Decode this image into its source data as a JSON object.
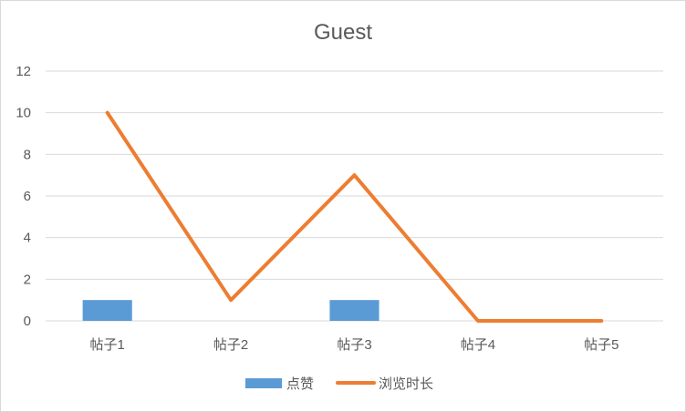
{
  "chart_data": {
    "type": "bar",
    "title": "Guest",
    "categories": [
      "帖子1",
      "帖子2",
      "帖子3",
      "帖子4",
      "帖子5"
    ],
    "ylim": [
      0,
      12
    ],
    "yticks": [
      0,
      2,
      4,
      6,
      8,
      10,
      12
    ],
    "grid": true,
    "legend_position": "bottom",
    "series": [
      {
        "name": "点赞",
        "type": "bar",
        "color": "#5b9bd5",
        "values": [
          1,
          0,
          1,
          0,
          0
        ]
      },
      {
        "name": "浏览时长",
        "type": "line",
        "color": "#ed7d31",
        "values": [
          10,
          1,
          7,
          0,
          0
        ]
      }
    ]
  }
}
